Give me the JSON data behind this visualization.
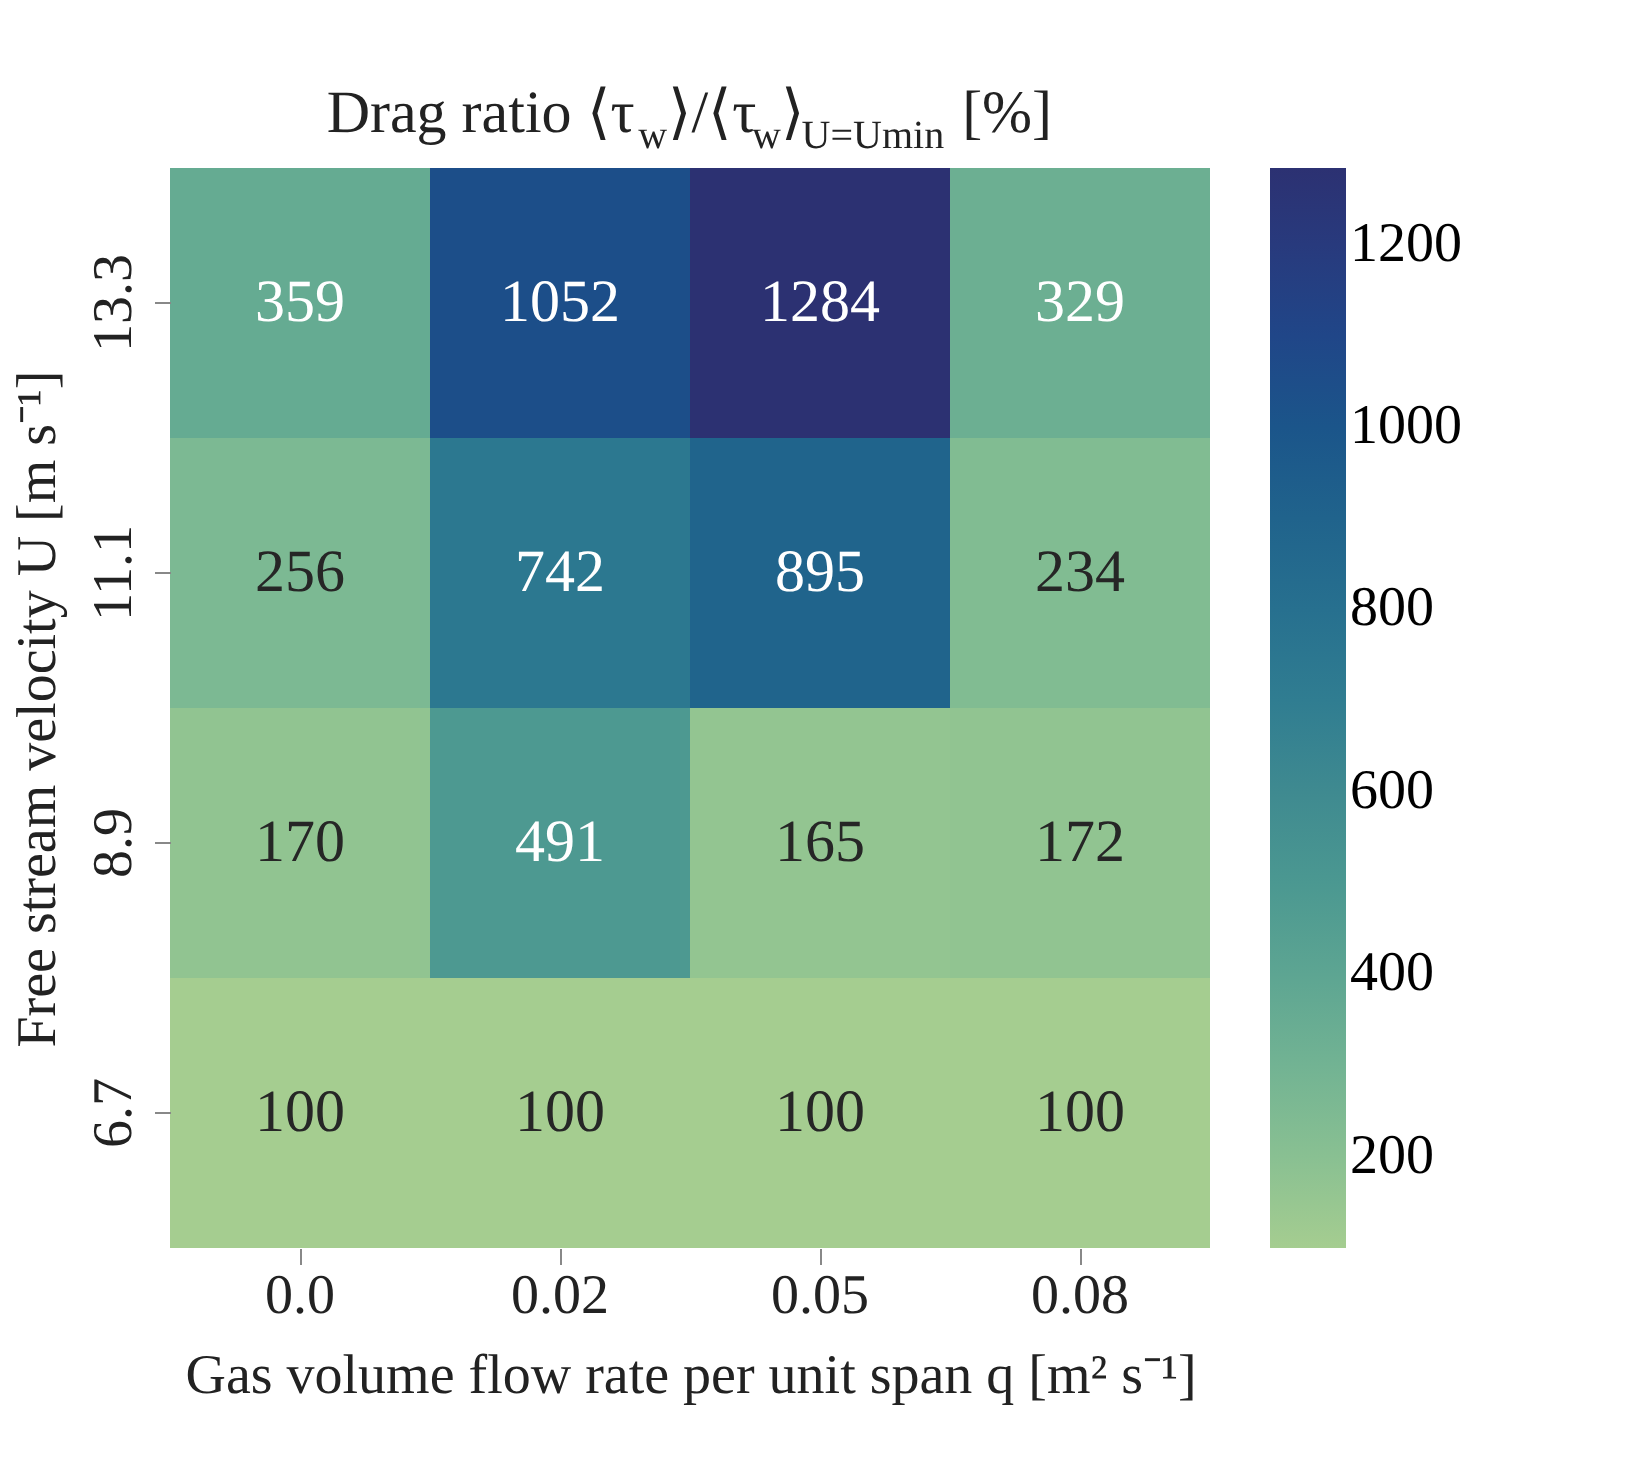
{
  "chart_data": {
    "type": "heatmap",
    "title": "Drag ratio ⟨τ$_{w}$⟩/⟨τ$_{w}$⟩$_{U=Umin}$ [%]",
    "xlabel": "Gas volume flow rate per unit span q [m² s⁻¹]",
    "ylabel": "Free stream velocity U [m s⁻¹]",
    "categories": [
      "0.0",
      "0.02",
      "0.05",
      "0.08"
    ],
    "y_categories": [
      "13.3",
      "11.1",
      "8.9",
      "6.7"
    ],
    "cells": [
      [
        359,
        1052,
        1284,
        329
      ],
      [
        256,
        742,
        895,
        234
      ],
      [
        170,
        491,
        165,
        172
      ],
      [
        100,
        100,
        100,
        100
      ]
    ],
    "data_labels": true,
    "clim": [
      100,
      1284
    ],
    "cticks": [
      200,
      400,
      600,
      800,
      1000,
      1200
    ],
    "colors": [
      "#a5cd90",
      "#79b793",
      "#56a091",
      "#3e8990",
      "#2a7390",
      "#1f5d8a",
      "#224487",
      "#2c3172"
    ],
    "grid": false
  }
}
